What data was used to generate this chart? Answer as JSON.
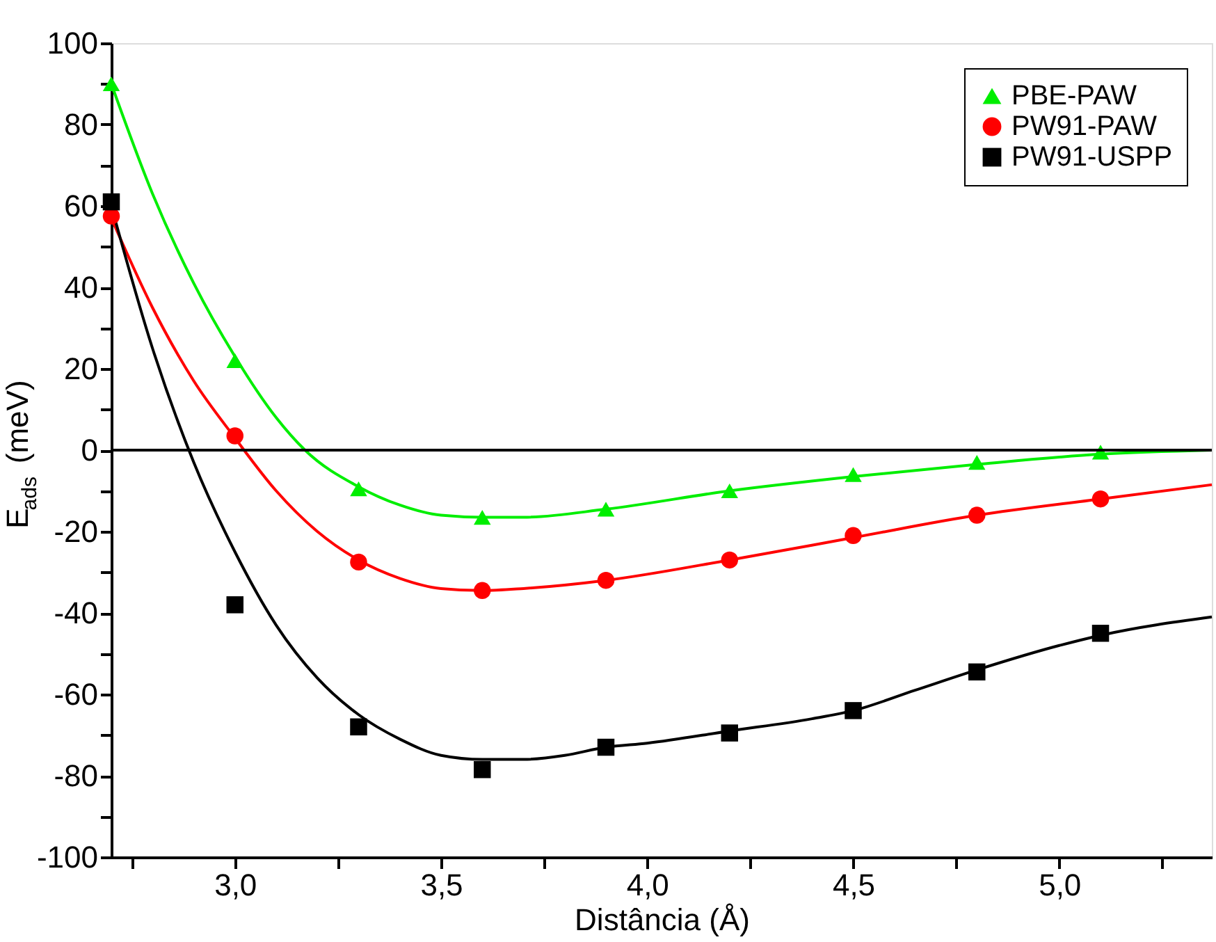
{
  "chart_data": {
    "type": "scatter",
    "xlabel": "Distância (Å)",
    "ylabel": "E$_{ads}$ (meV)",
    "xlim": [
      2.7,
      5.37
    ],
    "ylim": [
      -100,
      100
    ],
    "xticks": [
      {
        "value": 2.75,
        "label": null
      },
      {
        "value": 3.0,
        "label": "3,0"
      },
      {
        "value": 3.25,
        "label": null
      },
      {
        "value": 3.5,
        "label": "3,5"
      },
      {
        "value": 3.75,
        "label": null
      },
      {
        "value": 4.0,
        "label": "4,0"
      },
      {
        "value": 4.25,
        "label": null
      },
      {
        "value": 4.5,
        "label": "4,5"
      },
      {
        "value": 4.75,
        "label": null
      },
      {
        "value": 5.0,
        "label": "5,0"
      },
      {
        "value": 5.25,
        "label": null
      }
    ],
    "yticks": [
      -100,
      {
        "value": -90,
        "label": null
      },
      -80,
      {
        "value": -70,
        "label": null
      },
      -60,
      {
        "value": -50,
        "label": null
      },
      -40,
      {
        "value": -30,
        "label": null
      },
      -20,
      {
        "value": -10,
        "label": null
      },
      0,
      {
        "value": 10,
        "label": null
      },
      20,
      {
        "value": 30,
        "label": null
      },
      40,
      {
        "value": 50,
        "label": null
      },
      60,
      {
        "value": 70,
        "label": null
      },
      80,
      {
        "value": 90,
        "label": null
      },
      100
    ],
    "grid": false,
    "legend": "top right",
    "ref_lines": [
      {
        "axis": "y",
        "value": 0,
        "color": "#000000"
      }
    ],
    "series": [
      {
        "name": "PBE-PAW",
        "type": "scatter",
        "marker": "triangle",
        "color": "#00ee00",
        "x": [
          2.7,
          3.0,
          3.3,
          3.6,
          3.9,
          4.2,
          4.5,
          4.8,
          5.1
        ],
        "values": [
          90,
          22,
          -9.5,
          -16.5,
          -14.5,
          -10,
          -6,
          -3,
          -0.5
        ]
      },
      {
        "name": "PW91-PAW",
        "type": "scatter",
        "marker": "circle",
        "color": "#ff0000",
        "x": [
          2.7,
          3.0,
          3.3,
          3.6,
          3.9,
          4.2,
          4.5,
          4.8,
          5.1
        ],
        "values": [
          57.5,
          3.5,
          -27.5,
          -34.5,
          -32,
          -27,
          -21,
          -16,
          -12
        ]
      },
      {
        "name": "PW91-USPP",
        "type": "scatter",
        "marker": "square",
        "color": "#000000",
        "x": [
          2.7,
          3.0,
          3.3,
          3.6,
          3.9,
          4.2,
          4.5,
          4.8,
          5.1
        ],
        "values": [
          61,
          -38,
          -68,
          -78.5,
          -73,
          -69.5,
          -64,
          -54.5,
          -45
        ]
      },
      {
        "type": "line",
        "marker": "none",
        "color": "#00ee00",
        "x": [
          2.7,
          2.8,
          2.9,
          3.0,
          3.1,
          3.17,
          3.3,
          3.4,
          3.5,
          3.6,
          3.7,
          3.9,
          4.2,
          4.5,
          4.8,
          5.1,
          5.37
        ],
        "values": [
          90,
          63,
          41,
          23,
          8,
          0,
          -9,
          -13.5,
          -16,
          -16.5,
          -16.5,
          -14.5,
          -10,
          -6.5,
          -3.5,
          -1,
          0
        ]
      },
      {
        "type": "line",
        "marker": "none",
        "color": "#ff0000",
        "x": [
          2.7,
          2.8,
          2.9,
          3.0,
          3.1,
          3.2,
          3.3,
          3.4,
          3.5,
          3.6,
          3.7,
          3.9,
          4.2,
          4.5,
          4.8,
          5.1,
          5.37
        ],
        "values": [
          57,
          35,
          17,
          3,
          -10,
          -20,
          -27,
          -31.5,
          -34,
          -34.5,
          -34,
          -32,
          -27,
          -21.5,
          -16,
          -12,
          -8.5
        ]
      },
      {
        "type": "line",
        "marker": "none",
        "color": "#000000",
        "x": [
          2.7,
          2.8,
          2.9,
          3.0,
          3.1,
          3.2,
          3.3,
          3.4,
          3.5,
          3.6,
          3.7,
          3.8,
          3.9,
          4.0,
          4.2,
          4.4,
          4.5,
          4.65,
          4.8,
          5.0,
          5.1,
          5.37
        ],
        "values": [
          60,
          25,
          -3,
          -25,
          -43,
          -56,
          -65,
          -71,
          -75,
          -76,
          -76,
          -75,
          -73,
          -72,
          -69,
          -66,
          -64,
          -59,
          -54,
          -48,
          -45.5,
          -41
        ]
      }
    ]
  }
}
